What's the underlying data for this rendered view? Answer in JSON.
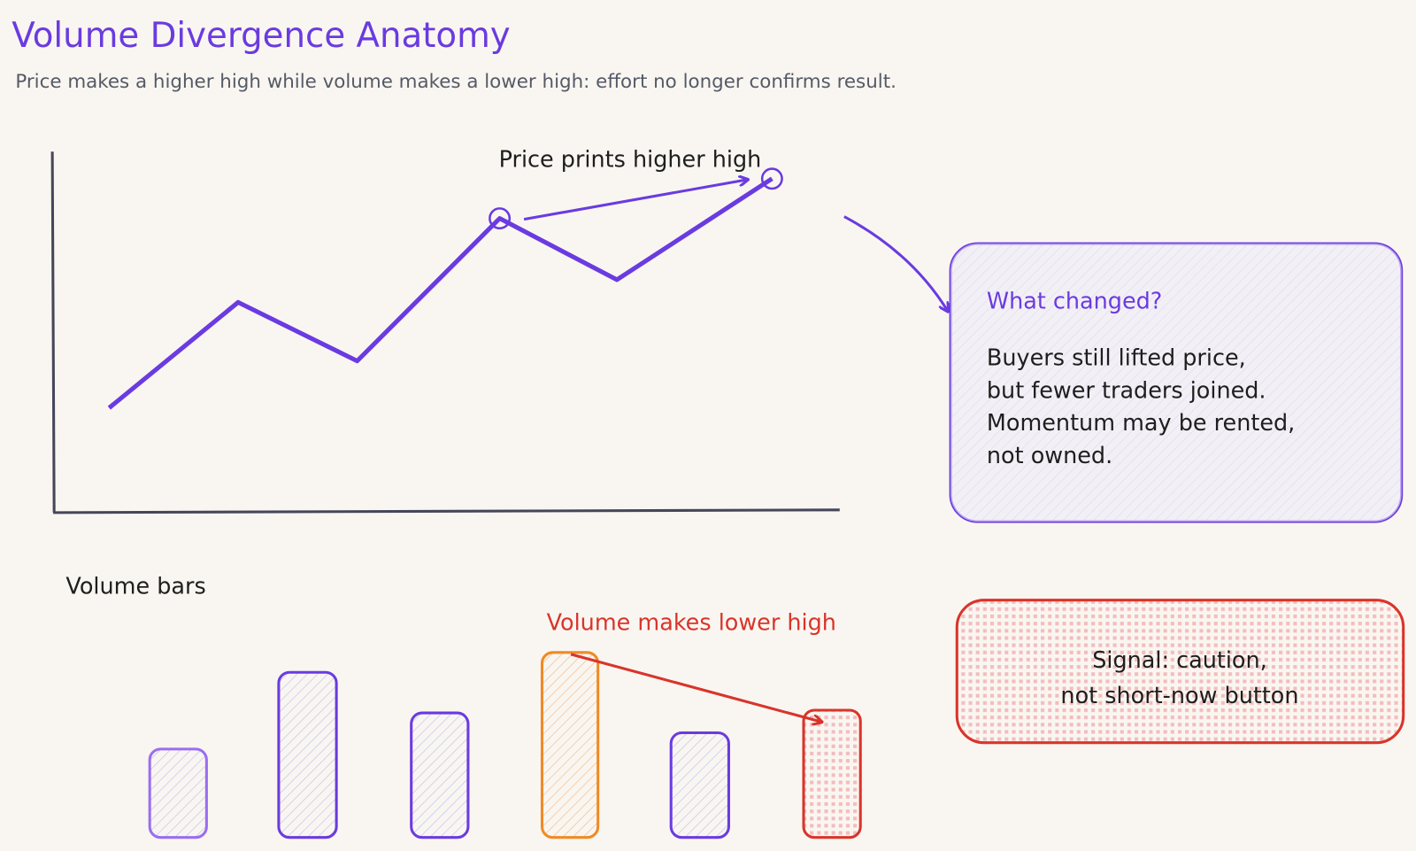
{
  "header": {
    "title": "Volume Divergence Anatomy",
    "subtitle": "Price makes a higher high while volume makes a lower high: effort no longer confirms result."
  },
  "price_panel": {
    "annotation": "Price prints higher high"
  },
  "volume_panel": {
    "label": "Volume bars",
    "annotation": "Volume makes lower high"
  },
  "callout": {
    "title": "What changed?",
    "lines": [
      "Buyers still lifted price,",
      "but fewer traders joined.",
      "Momentum may be rented,",
      "not owned."
    ]
  },
  "signal": {
    "lines": [
      "Signal: caution,",
      "not short-now button"
    ]
  }
}
